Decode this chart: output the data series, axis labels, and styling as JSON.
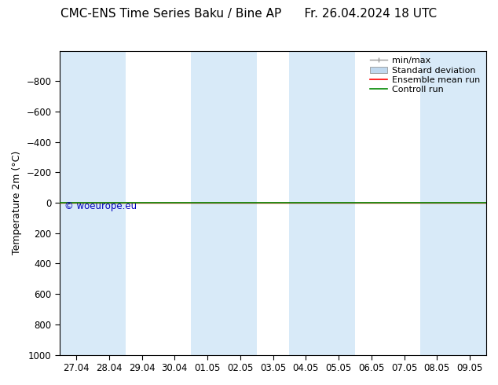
{
  "title_left": "CMC-ENS Time Series Baku / Bine AP",
  "title_right": "Fr. 26.04.2024 18 UTC",
  "ylabel": "Temperature 2m (°C)",
  "xlabels": [
    "27.04",
    "28.04",
    "29.04",
    "30.04",
    "01.05",
    "02.05",
    "03.05",
    "04.05",
    "05.05",
    "06.05",
    "07.05",
    "08.05",
    "09.05"
  ],
  "ymin": -1000,
  "ymax": 1000,
  "yticks": [
    -800,
    -600,
    -400,
    -200,
    0,
    200,
    400,
    600,
    800,
    1000
  ],
  "background_color": "#ffffff",
  "plot_bg_color": "#ffffff",
  "shaded_band_color": "#d8eaf8",
  "shaded_cols": [
    0,
    1,
    4,
    5,
    7,
    8,
    11,
    12
  ],
  "control_run_color": "#008800",
  "ensemble_mean_color": "#ff0000",
  "min_max_color": "#999999",
  "std_dev_color": "#c0d8ee",
  "watermark": "© woeurope.eu",
  "watermark_color": "#0000bb",
  "title_fontsize": 11,
  "axis_label_fontsize": 9,
  "tick_fontsize": 8.5,
  "legend_fontsize": 8
}
